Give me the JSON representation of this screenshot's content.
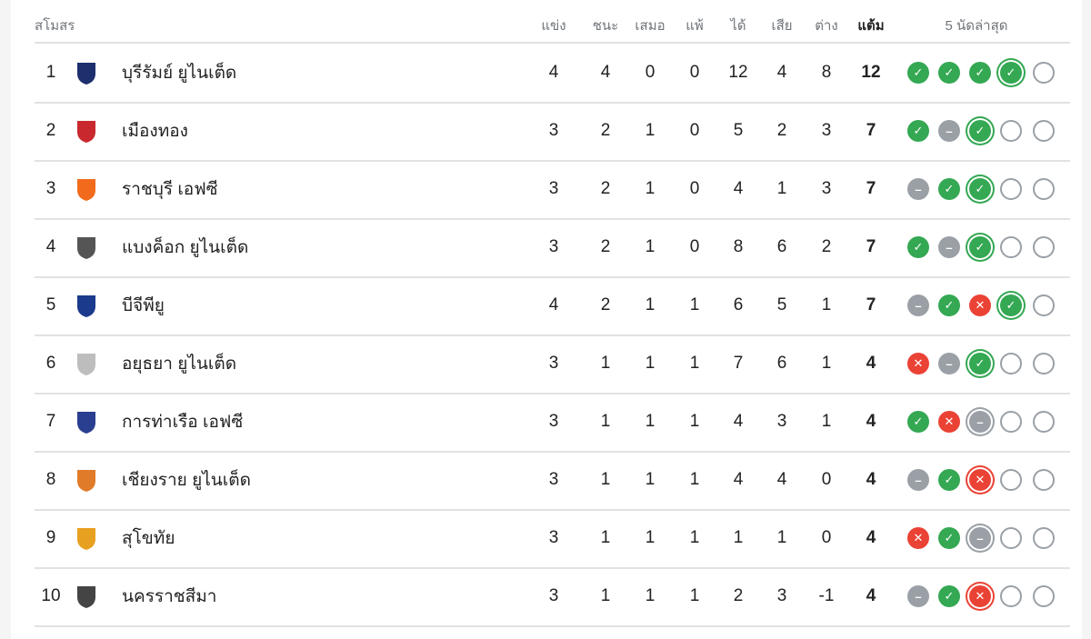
{
  "header": {
    "club": "สโมสร",
    "played": "แข่ง",
    "won": "ชนะ",
    "drawn": "เสมอ",
    "lost": "แพ้",
    "gf": "ได้",
    "ga": "เสีย",
    "gd": "ต่าง",
    "pts": "แต้ม",
    "form": "5 นัดล่าสุด"
  },
  "colors": {
    "win": "#34a853",
    "draw": "#9aa0a6",
    "loss": "#ea4335"
  },
  "rows": [
    {
      "rank": "1",
      "name": "บุรีรัมย์ ยูไนเต็ด",
      "p": "4",
      "w": "4",
      "d": "0",
      "l": "0",
      "gf": "12",
      "ga": "4",
      "gd": "8",
      "pts": "12",
      "form": [
        "W",
        "W",
        "W",
        "W",
        "E"
      ],
      "current": 3,
      "logo_color": "#1e2f6e"
    },
    {
      "rank": "2",
      "name": "เมืองทอง",
      "p": "3",
      "w": "2",
      "d": "1",
      "l": "0",
      "gf": "5",
      "ga": "2",
      "gd": "3",
      "pts": "7",
      "form": [
        "W",
        "D",
        "W",
        "E",
        "E"
      ],
      "current": 2,
      "logo_color": "#c8282e"
    },
    {
      "rank": "3",
      "name": "ราชบุรี เอฟซี",
      "p": "3",
      "w": "2",
      "d": "1",
      "l": "0",
      "gf": "4",
      "ga": "1",
      "gd": "3",
      "pts": "7",
      "form": [
        "D",
        "W",
        "W",
        "E",
        "E"
      ],
      "current": 2,
      "logo_color": "#f26b1d"
    },
    {
      "rank": "4",
      "name": "แบงค็อก ยูไนเต็ด",
      "p": "3",
      "w": "2",
      "d": "1",
      "l": "0",
      "gf": "8",
      "ga": "6",
      "gd": "2",
      "pts": "7",
      "form": [
        "W",
        "D",
        "W",
        "E",
        "E"
      ],
      "current": 2,
      "logo_color": "#555555"
    },
    {
      "rank": "5",
      "name": "บีจีพียู",
      "p": "4",
      "w": "2",
      "d": "1",
      "l": "1",
      "gf": "6",
      "ga": "5",
      "gd": "1",
      "pts": "7",
      "form": [
        "D",
        "W",
        "L",
        "W",
        "E"
      ],
      "current": 3,
      "logo_color": "#1b3a8c"
    },
    {
      "rank": "6",
      "name": "อยุธยา ยูไนเต็ด",
      "p": "3",
      "w": "1",
      "d": "1",
      "l": "1",
      "gf": "7",
      "ga": "6",
      "gd": "1",
      "pts": "4",
      "form": [
        "L",
        "D",
        "W",
        "E",
        "E"
      ],
      "current": 2,
      "logo_color": "#bdbdbd"
    },
    {
      "rank": "7",
      "name": "การท่าเรือ เอฟซี",
      "p": "3",
      "w": "1",
      "d": "1",
      "l": "1",
      "gf": "4",
      "ga": "3",
      "gd": "1",
      "pts": "4",
      "form": [
        "W",
        "L",
        "D",
        "E",
        "E"
      ],
      "current": 2,
      "logo_color": "#2a3f8f"
    },
    {
      "rank": "8",
      "name": "เชียงราย ยูไนเต็ด",
      "p": "3",
      "w": "1",
      "d": "1",
      "l": "1",
      "gf": "4",
      "ga": "4",
      "gd": "0",
      "pts": "4",
      "form": [
        "D",
        "W",
        "L",
        "E",
        "E"
      ],
      "current": 2,
      "logo_color": "#e07b2a"
    },
    {
      "rank": "9",
      "name": "สุโขทัย",
      "p": "3",
      "w": "1",
      "d": "1",
      "l": "1",
      "gf": "1",
      "ga": "1",
      "gd": "0",
      "pts": "4",
      "form": [
        "L",
        "W",
        "D",
        "E",
        "E"
      ],
      "current": 2,
      "logo_color": "#e8a020"
    },
    {
      "rank": "10",
      "name": "นครราชสีมา",
      "p": "3",
      "w": "1",
      "d": "1",
      "l": "1",
      "gf": "2",
      "ga": "3",
      "gd": "-1",
      "pts": "4",
      "form": [
        "D",
        "W",
        "L",
        "E",
        "E"
      ],
      "current": 2,
      "logo_color": "#444444"
    }
  ]
}
